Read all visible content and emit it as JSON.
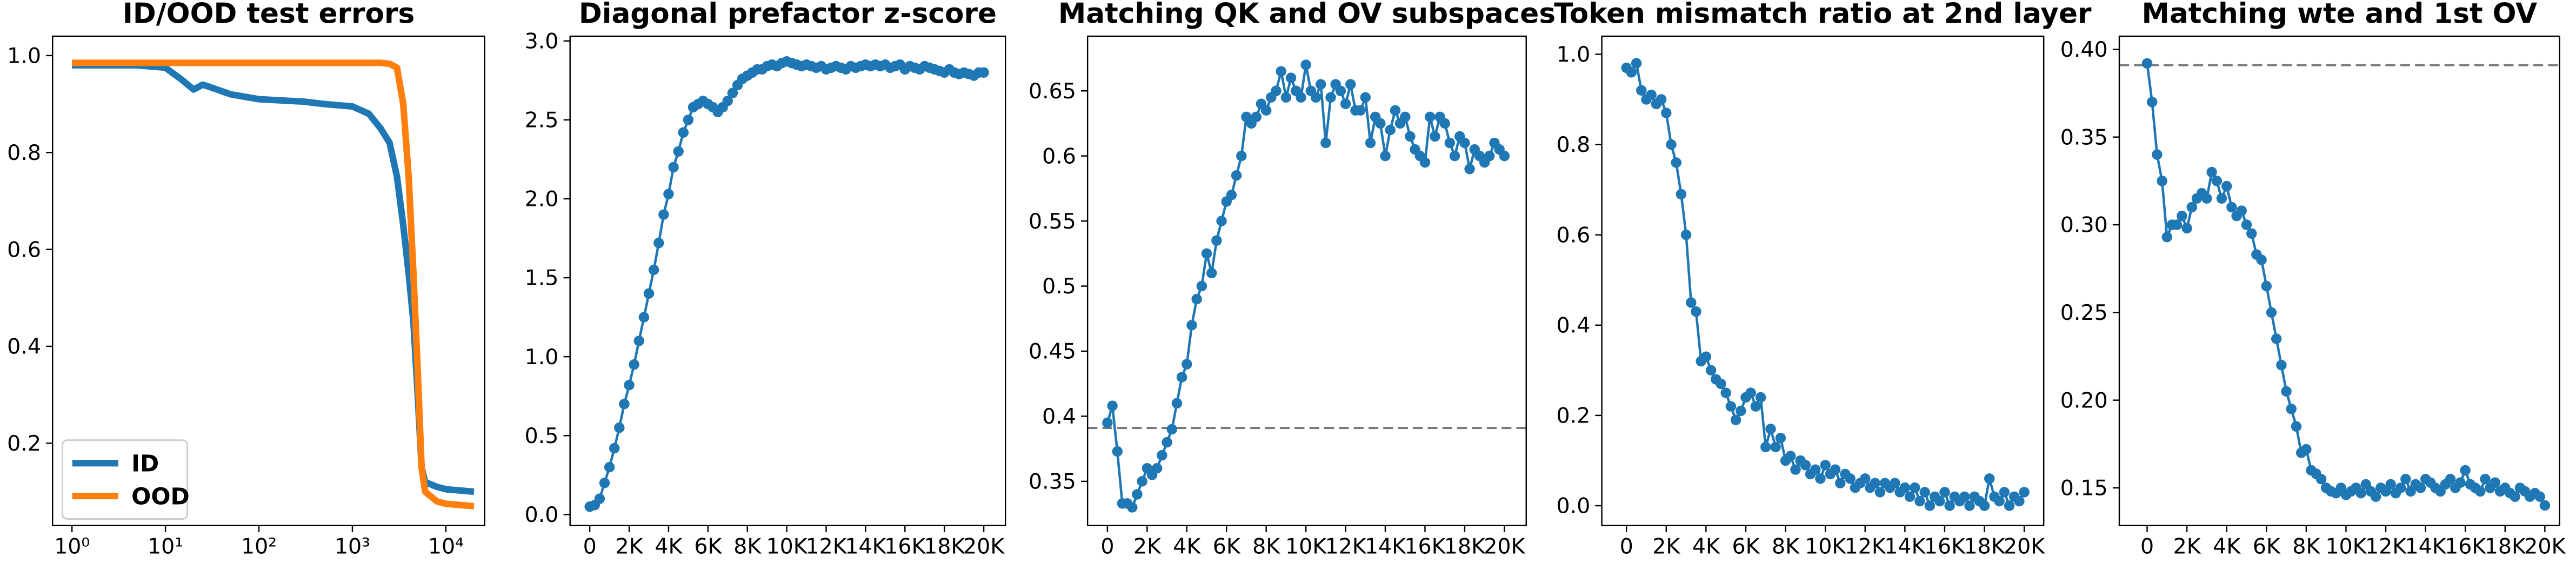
{
  "chart_data": [
    {
      "type": "line",
      "title": "ID/OOD test errors",
      "xscale": "log",
      "xlim": [
        0.62,
        26000
      ],
      "ylim": [
        0.03,
        1.04
      ],
      "xticks": [
        {
          "value": 1,
          "label": "10⁰"
        },
        {
          "value": 10,
          "label": "10¹"
        },
        {
          "value": 100,
          "label": "10²"
        },
        {
          "value": 1000,
          "label": "10³"
        },
        {
          "value": 10000,
          "label": "10⁴"
        }
      ],
      "yticks": [
        0.2,
        0.4,
        0.6,
        0.8,
        {
          "value": 1,
          "label": "1.0"
        }
      ],
      "legend": "lower left",
      "x": [
        1,
        5,
        10,
        15,
        20,
        25,
        30,
        50,
        100,
        300,
        500,
        1000,
        1500,
        2000,
        2500,
        3000,
        3500,
        4000,
        4500,
        5000,
        5500,
        6000,
        8000,
        10000,
        20000
      ],
      "series": [
        {
          "name": "ID",
          "color": "#1f77b4",
          "values": [
            0.98,
            0.98,
            0.975,
            0.95,
            0.93,
            0.94,
            0.935,
            0.92,
            0.91,
            0.905,
            0.9,
            0.895,
            0.88,
            0.85,
            0.82,
            0.75,
            0.65,
            0.55,
            0.45,
            0.3,
            0.15,
            0.12,
            0.11,
            0.105,
            0.1
          ]
        },
        {
          "name": "OOD",
          "color": "#ff7f0e",
          "values": [
            0.985,
            0.985,
            0.985,
            0.985,
            0.985,
            0.985,
            0.985,
            0.985,
            0.985,
            0.985,
            0.985,
            0.985,
            0.985,
            0.985,
            0.983,
            0.975,
            0.9,
            0.75,
            0.55,
            0.35,
            0.15,
            0.1,
            0.08,
            0.075,
            0.07
          ]
        }
      ]
    },
    {
      "type": "line",
      "title": "Diagonal prefactor z-score",
      "marker": "o",
      "color": "#1f77b4",
      "xlim": [
        -1000,
        21100
      ],
      "ylim": [
        -0.07,
        3.03
      ],
      "xticks": [
        0,
        {
          "value": 2000,
          "label": "2K"
        },
        {
          "value": 4000,
          "label": "4K"
        },
        {
          "value": 6000,
          "label": "6K"
        },
        {
          "value": 8000,
          "label": "8K"
        },
        {
          "value": 10000,
          "label": "10K"
        },
        {
          "value": 12000,
          "label": "12K"
        },
        {
          "value": 14000,
          "label": "14K"
        },
        {
          "value": 16000,
          "label": "16K"
        },
        {
          "value": 18000,
          "label": "18K"
        },
        {
          "value": 20000,
          "label": "20K"
        }
      ],
      "yticks": [
        {
          "value": 0,
          "label": "0.0"
        },
        0.5,
        {
          "value": 1,
          "label": "1.0"
        },
        1.5,
        {
          "value": 2,
          "label": "2.0"
        },
        2.5,
        {
          "value": 3,
          "label": "3.0"
        }
      ],
      "x": [
        0,
        250,
        500,
        750,
        1000,
        1250,
        1500,
        1750,
        2000,
        2250,
        2500,
        2750,
        3000,
        3250,
        3500,
        3750,
        4000,
        4250,
        4500,
        4750,
        5000,
        5250,
        5500,
        5750,
        6000,
        6250,
        6500,
        6750,
        7000,
        7250,
        7500,
        7750,
        8000,
        8250,
        8500,
        8750,
        9000,
        9250,
        9500,
        9750,
        10000,
        10250,
        10500,
        10750,
        11000,
        11250,
        11500,
        11750,
        12000,
        12250,
        12500,
        12750,
        13000,
        13250,
        13500,
        13750,
        14000,
        14250,
        14500,
        14750,
        15000,
        15250,
        15500,
        15750,
        16000,
        16250,
        16500,
        16750,
        17000,
        17250,
        17500,
        17750,
        18000,
        18250,
        18500,
        18750,
        19000,
        19250,
        19500,
        19750,
        20000
      ],
      "values": [
        0.05,
        0.06,
        0.1,
        0.2,
        0.3,
        0.42,
        0.55,
        0.7,
        0.82,
        0.95,
        1.1,
        1.25,
        1.4,
        1.55,
        1.72,
        1.9,
        2.03,
        2.2,
        2.3,
        2.42,
        2.5,
        2.58,
        2.6,
        2.62,
        2.6,
        2.58,
        2.55,
        2.58,
        2.62,
        2.67,
        2.72,
        2.76,
        2.78,
        2.8,
        2.82,
        2.82,
        2.84,
        2.85,
        2.84,
        2.86,
        2.87,
        2.86,
        2.85,
        2.84,
        2.85,
        2.84,
        2.83,
        2.84,
        2.82,
        2.83,
        2.84,
        2.83,
        2.82,
        2.84,
        2.83,
        2.84,
        2.85,
        2.84,
        2.85,
        2.84,
        2.85,
        2.83,
        2.84,
        2.85,
        2.82,
        2.84,
        2.83,
        2.82,
        2.84,
        2.83,
        2.82,
        2.81,
        2.8,
        2.82,
        2.8,
        2.79,
        2.8,
        2.79,
        2.78,
        2.8,
        2.8
      ]
    },
    {
      "type": "line",
      "title": "Matching QK and OV subspaces",
      "marker": "o",
      "color": "#1f77b4",
      "hline": 0.391,
      "xlim": [
        -1000,
        21100
      ],
      "ylim": [
        0.316,
        0.692
      ],
      "xticks": [
        0,
        {
          "value": 2000,
          "label": "2K"
        },
        {
          "value": 4000,
          "label": "4K"
        },
        {
          "value": 6000,
          "label": "6K"
        },
        {
          "value": 8000,
          "label": "8K"
        },
        {
          "value": 10000,
          "label": "10K"
        },
        {
          "value": 12000,
          "label": "12K"
        },
        {
          "value": 14000,
          "label": "14K"
        },
        {
          "value": 16000,
          "label": "16K"
        },
        {
          "value": 18000,
          "label": "18K"
        },
        {
          "value": 20000,
          "label": "20K"
        }
      ],
      "yticks": [
        0.35,
        0.4,
        0.45,
        0.5,
        0.55,
        0.6,
        0.65
      ],
      "x": [
        0,
        250,
        500,
        750,
        1000,
        1250,
        1500,
        1750,
        2000,
        2250,
        2500,
        2750,
        3000,
        3250,
        3500,
        3750,
        4000,
        4250,
        4500,
        4750,
        5000,
        5250,
        5500,
        5750,
        6000,
        6250,
        6500,
        6750,
        7000,
        7250,
        7500,
        7750,
        8000,
        8250,
        8500,
        8750,
        9000,
        9250,
        9500,
        9750,
        10000,
        10250,
        10500,
        10750,
        11000,
        11250,
        11500,
        11750,
        12000,
        12250,
        12500,
        12750,
        13000,
        13250,
        13500,
        13750,
        14000,
        14250,
        14500,
        14750,
        15000,
        15250,
        15500,
        15750,
        16000,
        16250,
        16500,
        16750,
        17000,
        17250,
        17500,
        17750,
        18000,
        18250,
        18500,
        18750,
        19000,
        19250,
        19500,
        19750,
        20000
      ],
      "values": [
        0.395,
        0.408,
        0.373,
        0.333,
        0.333,
        0.33,
        0.34,
        0.35,
        0.36,
        0.355,
        0.36,
        0.37,
        0.38,
        0.39,
        0.41,
        0.43,
        0.44,
        0.47,
        0.49,
        0.5,
        0.525,
        0.51,
        0.535,
        0.55,
        0.565,
        0.57,
        0.585,
        0.6,
        0.63,
        0.625,
        0.63,
        0.64,
        0.635,
        0.645,
        0.65,
        0.665,
        0.645,
        0.66,
        0.65,
        0.645,
        0.67,
        0.65,
        0.645,
        0.655,
        0.61,
        0.645,
        0.655,
        0.65,
        0.64,
        0.655,
        0.635,
        0.635,
        0.645,
        0.61,
        0.63,
        0.625,
        0.6,
        0.62,
        0.635,
        0.625,
        0.63,
        0.615,
        0.605,
        0.6,
        0.595,
        0.63,
        0.615,
        0.63,
        0.625,
        0.61,
        0.6,
        0.615,
        0.61,
        0.59,
        0.605,
        0.6,
        0.595,
        0.6,
        0.61,
        0.605,
        0.6
      ]
    },
    {
      "type": "line",
      "title": "Token mismatch ratio at 2nd layer",
      "marker": "o",
      "color": "#1f77b4",
      "xlim": [
        -1240,
        20980
      ],
      "ylim": [
        -0.044,
        1.04
      ],
      "xticks": [
        0,
        {
          "value": 2000,
          "label": "2K"
        },
        {
          "value": 4000,
          "label": "4K"
        },
        {
          "value": 6000,
          "label": "6K"
        },
        {
          "value": 8000,
          "label": "8K"
        },
        {
          "value": 10000,
          "label": "10K"
        },
        {
          "value": 12000,
          "label": "12K"
        },
        {
          "value": 14000,
          "label": "14K"
        },
        {
          "value": 16000,
          "label": "16K"
        },
        {
          "value": 18000,
          "label": "18K"
        },
        {
          "value": 20000,
          "label": "20K"
        }
      ],
      "yticks": [
        {
          "value": 0,
          "label": "0.0"
        },
        0.2,
        0.4,
        0.6,
        0.8,
        {
          "value": 1,
          "label": "1.0"
        }
      ],
      "x": [
        0,
        250,
        500,
        750,
        1000,
        1250,
        1500,
        1750,
        2000,
        2250,
        2500,
        2750,
        3000,
        3250,
        3500,
        3750,
        4000,
        4250,
        4500,
        4750,
        5000,
        5250,
        5500,
        5750,
        6000,
        6250,
        6500,
        6750,
        7000,
        7250,
        7500,
        7750,
        8000,
        8250,
        8500,
        8750,
        9000,
        9250,
        9500,
        9750,
        10000,
        10250,
        10500,
        10750,
        11000,
        11250,
        11500,
        11750,
        12000,
        12250,
        12500,
        12750,
        13000,
        13250,
        13500,
        13750,
        14000,
        14250,
        14500,
        14750,
        15000,
        15250,
        15500,
        15750,
        16000,
        16250,
        16500,
        16750,
        17000,
        17250,
        17500,
        17750,
        18000,
        18250,
        18500,
        18750,
        19000,
        19250,
        19500,
        19750,
        20000
      ],
      "values": [
        0.97,
        0.96,
        0.98,
        0.92,
        0.9,
        0.91,
        0.89,
        0.9,
        0.87,
        0.8,
        0.76,
        0.69,
        0.6,
        0.45,
        0.43,
        0.32,
        0.33,
        0.3,
        0.28,
        0.27,
        0.25,
        0.22,
        0.19,
        0.21,
        0.24,
        0.25,
        0.22,
        0.24,
        0.13,
        0.17,
        0.13,
        0.15,
        0.1,
        0.11,
        0.08,
        0.1,
        0.09,
        0.07,
        0.08,
        0.06,
        0.09,
        0.07,
        0.08,
        0.05,
        0.07,
        0.06,
        0.04,
        0.05,
        0.06,
        0.04,
        0.05,
        0.03,
        0.05,
        0.04,
        0.05,
        0.03,
        0.04,
        0.02,
        0.04,
        0.01,
        0.03,
        0,
        0.02,
        0.01,
        0.03,
        0,
        0.02,
        0.01,
        0.02,
        0,
        0.02,
        0.01,
        0,
        0.06,
        0.02,
        0.01,
        0.03,
        0,
        0.02,
        0.01,
        0.03
      ]
    },
    {
      "type": "line",
      "title": "Matching wte and 1st OV",
      "marker": "o",
      "color": "#1f77b4",
      "hline": 0.391,
      "xlim": [
        -1400,
        20740
      ],
      "ylim": [
        0.1285,
        0.4075
      ],
      "xticks": [
        0,
        {
          "value": 2000,
          "label": "2K"
        },
        {
          "value": 4000,
          "label": "4K"
        },
        {
          "value": 6000,
          "label": "6K"
        },
        {
          "value": 8000,
          "label": "8K"
        },
        {
          "value": 10000,
          "label": "10K"
        },
        {
          "value": 12000,
          "label": "12K"
        },
        {
          "value": 14000,
          "label": "14K"
        },
        {
          "value": 16000,
          "label": "16K"
        },
        {
          "value": 18000,
          "label": "18K"
        },
        {
          "value": 20000,
          "label": "20K"
        }
      ],
      "yticks": [
        0.15,
        {
          "value": 0.2,
          "label": "0.20"
        },
        0.25,
        {
          "value": 0.3,
          "label": "0.30"
        },
        0.35,
        {
          "value": 0.4,
          "label": "0.40"
        }
      ],
      "x": [
        0,
        250,
        500,
        750,
        1000,
        1250,
        1500,
        1750,
        2000,
        2250,
        2500,
        2750,
        3000,
        3250,
        3500,
        3750,
        4000,
        4250,
        4500,
        4750,
        5000,
        5250,
        5500,
        5750,
        6000,
        6250,
        6500,
        6750,
        7000,
        7250,
        7500,
        7750,
        8000,
        8250,
        8500,
        8750,
        9000,
        9250,
        9500,
        9750,
        10000,
        10250,
        10500,
        10750,
        11000,
        11250,
        11500,
        11750,
        12000,
        12250,
        12500,
        12750,
        13000,
        13250,
        13500,
        13750,
        14000,
        14250,
        14500,
        14750,
        15000,
        15250,
        15500,
        15750,
        16000,
        16250,
        16500,
        16750,
        17000,
        17250,
        17500,
        17750,
        18000,
        18250,
        18500,
        18750,
        19000,
        19250,
        19500,
        19750,
        20000
      ],
      "values": [
        0.392,
        0.37,
        0.34,
        0.325,
        0.293,
        0.3,
        0.3,
        0.305,
        0.298,
        0.31,
        0.315,
        0.318,
        0.315,
        0.33,
        0.325,
        0.315,
        0.322,
        0.31,
        0.305,
        0.308,
        0.3,
        0.295,
        0.283,
        0.28,
        0.265,
        0.25,
        0.235,
        0.22,
        0.205,
        0.195,
        0.185,
        0.17,
        0.172,
        0.16,
        0.158,
        0.155,
        0.15,
        0.148,
        0.147,
        0.15,
        0.146,
        0.148,
        0.15,
        0.147,
        0.152,
        0.148,
        0.145,
        0.15,
        0.148,
        0.152,
        0.147,
        0.15,
        0.155,
        0.148,
        0.152,
        0.15,
        0.155,
        0.153,
        0.15,
        0.148,
        0.152,
        0.155,
        0.15,
        0.153,
        0.16,
        0.152,
        0.15,
        0.148,
        0.155,
        0.15,
        0.153,
        0.148,
        0.15,
        0.147,
        0.145,
        0.15,
        0.148,
        0.145,
        0.147,
        0.145,
        0.14
      ]
    }
  ]
}
